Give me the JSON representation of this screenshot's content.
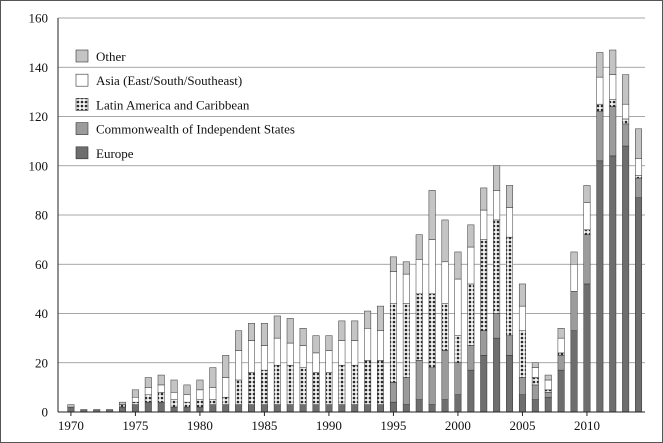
{
  "chart_data": {
    "type": "bar",
    "stacked": true,
    "title": "",
    "xlabel": "",
    "ylabel": "",
    "ylim": [
      0,
      160
    ],
    "xlim": [
      1969,
      2014.5
    ],
    "y_ticks": [
      0,
      20,
      40,
      60,
      80,
      100,
      120,
      140,
      160
    ],
    "x_ticks": [
      1970,
      1975,
      1980,
      1985,
      1990,
      1995,
      2000,
      2005,
      2010
    ],
    "grid": "horizontal",
    "legend_position": "top-left",
    "legend": [
      "Other",
      "Asia (East/South/Southeast)",
      "Latin America and Caribbean",
      "Commonwealth of Independent States",
      "Europe"
    ],
    "x": [
      1970,
      1971,
      1972,
      1973,
      1974,
      1975,
      1976,
      1977,
      1978,
      1979,
      1980,
      1981,
      1982,
      1983,
      1984,
      1985,
      1986,
      1987,
      1988,
      1989,
      1990,
      1991,
      1992,
      1993,
      1994,
      1995,
      1996,
      1997,
      1998,
      1999,
      2000,
      2001,
      2002,
      2003,
      2004,
      2005,
      2006,
      2007,
      2008,
      2009,
      2010,
      2011,
      2012,
      2013,
      2014
    ],
    "series": [
      {
        "name": "Europe",
        "color": "#6e6e6e",
        "values": [
          2,
          1,
          1,
          1,
          2,
          3,
          4,
          4,
          2,
          2,
          2,
          3,
          3,
          3,
          3,
          3,
          3,
          3,
          3,
          3,
          3,
          3,
          3,
          3,
          3,
          4,
          3,
          5,
          3,
          5,
          7,
          17,
          23,
          30,
          23,
          7,
          5,
          6,
          17,
          33,
          52,
          102,
          104,
          108,
          87
        ]
      },
      {
        "name": "Commonwealth of Independent States",
        "color": "#9b9b9b",
        "values": [
          0,
          0,
          0,
          0,
          0,
          0,
          0,
          0,
          0,
          0,
          0,
          0,
          0,
          0,
          0,
          0,
          0,
          0,
          0,
          0,
          0,
          0,
          0,
          0,
          0,
          8,
          11,
          16,
          15,
          20,
          13,
          10,
          10,
          10,
          8,
          7,
          6,
          2,
          6,
          16,
          20,
          20,
          20,
          9,
          8
        ]
      },
      {
        "name": "Latin America and Caribbean",
        "color": "#3a3a3a",
        "pattern": true,
        "values": [
          0,
          0,
          0,
          0,
          1,
          1,
          3,
          4,
          3,
          2,
          3,
          2,
          3,
          10,
          13,
          14,
          16,
          16,
          15,
          13,
          13,
          16,
          16,
          18,
          18,
          32,
          30,
          27,
          30,
          19,
          11,
          25,
          37,
          38,
          40,
          19,
          3,
          1,
          1,
          0,
          2,
          3,
          3,
          2,
          1
        ]
      },
      {
        "name": "Asia (East/South/Southeast)",
        "color": "#ffffff",
        "values": [
          0,
          0,
          0,
          0,
          0,
          2,
          3,
          3,
          3,
          3,
          4,
          5,
          8,
          12,
          13,
          10,
          11,
          9,
          9,
          8,
          9,
          10,
          10,
          13,
          12,
          13,
          12,
          14,
          22,
          17,
          23,
          15,
          12,
          12,
          12,
          10,
          4,
          4,
          6,
          11,
          11,
          11,
          10,
          6,
          7
        ]
      },
      {
        "name": "Other",
        "color": "#c4c4c4",
        "values": [
          1,
          0,
          0,
          0,
          1,
          3,
          4,
          4,
          5,
          4,
          4,
          8,
          9,
          8,
          7,
          9,
          9,
          10,
          7,
          7,
          6,
          8,
          8,
          7,
          10,
          6,
          5,
          10,
          20,
          17,
          11,
          9,
          9,
          10,
          9,
          9,
          2,
          2,
          4,
          5,
          7,
          10,
          10,
          12,
          12
        ]
      }
    ]
  }
}
